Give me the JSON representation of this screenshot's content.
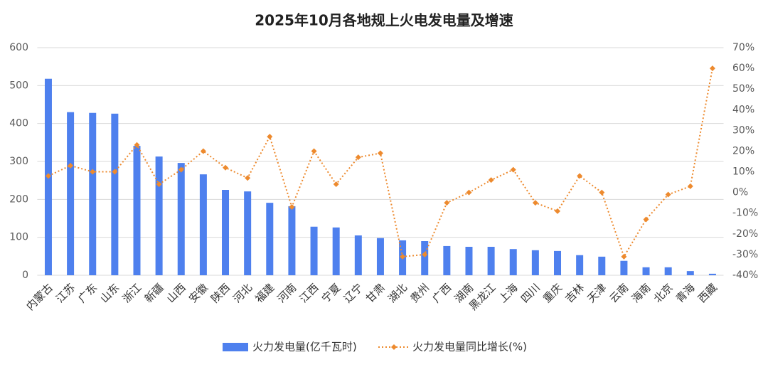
{
  "chart_data": {
    "type": "bar",
    "title": "2025年10月各地规上火电发电量及增速",
    "categories": [
      "内蒙古",
      "江苏",
      "广东",
      "山东",
      "浙江",
      "新疆",
      "山西",
      "安徽",
      "陕西",
      "河北",
      "福建",
      "河南",
      "江西",
      "宁夏",
      "辽宁",
      "甘肃",
      "湖北",
      "贵州",
      "广西",
      "湖南",
      "黑龙江",
      "上海",
      "四川",
      "重庆",
      "吉林",
      "天津",
      "云南",
      "海南",
      "北京",
      "青海",
      "西藏"
    ],
    "series": [
      {
        "name": "火力发电量(亿千瓦时)",
        "type": "bar",
        "color": "#4e80ee",
        "values": [
          518,
          430,
          428,
          426,
          341,
          313,
          296,
          266,
          225,
          221,
          191,
          182,
          128,
          126,
          105,
          98,
          92,
          90,
          77,
          75,
          75,
          69,
          66,
          64,
          53,
          49,
          38,
          21,
          21,
          11,
          4
        ]
      },
      {
        "name": "火力发电量同比增长(%)",
        "type": "line",
        "axis": "y2",
        "color": "#ed8a2e",
        "values": [
          8,
          13,
          10,
          10,
          23,
          4,
          11,
          20,
          12,
          7,
          27,
          -7,
          20,
          4,
          17,
          19,
          -31,
          -30,
          -5,
          0,
          6,
          11,
          -5,
          -9,
          8,
          0,
          -31,
          -13,
          -1,
          3,
          60
        ]
      }
    ],
    "ylim": [
      0,
      600
    ],
    "yticks": [
      0,
      100,
      200,
      300,
      400,
      500,
      600
    ],
    "y2lim": [
      -40,
      70
    ],
    "y2ticks": [
      {
        "value": -40,
        "label": "-40%"
      },
      {
        "value": -30,
        "label": "-30%"
      },
      {
        "value": -20,
        "label": "-20%"
      },
      {
        "value": -10,
        "label": "-10%"
      },
      {
        "value": 0,
        "label": "0%"
      },
      {
        "value": 10,
        "label": "10%"
      },
      {
        "value": 20,
        "label": "20%"
      },
      {
        "value": 30,
        "label": "30%"
      },
      {
        "value": 40,
        "label": "40%"
      },
      {
        "value": 50,
        "label": "50%"
      },
      {
        "value": 60,
        "label": "60%"
      },
      {
        "value": 70,
        "label": "70%"
      }
    ],
    "grid": true,
    "legend": "bottom"
  }
}
